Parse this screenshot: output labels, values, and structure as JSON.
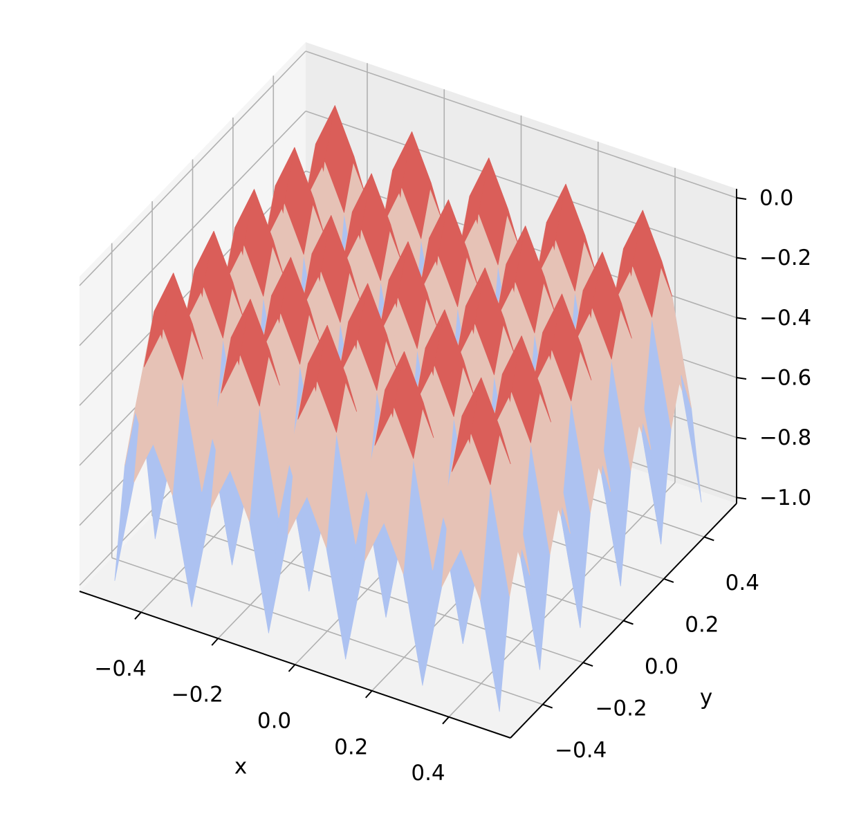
{
  "chart_data": {
    "type": "surface",
    "x_label": "x",
    "y_label": "y",
    "x": [
      -0.5,
      -0.45,
      -0.4,
      -0.35,
      -0.3,
      -0.25,
      -0.2,
      -0.15,
      -0.1,
      -0.05,
      0,
      0.05,
      0.1,
      0.15,
      0.2,
      0.25,
      0.3,
      0.35,
      0.4,
      0.45,
      0.5
    ],
    "y": [
      -0.5,
      -0.45,
      -0.4,
      -0.35,
      -0.3,
      -0.25,
      -0.2,
      -0.15,
      -0.1,
      -0.05,
      0,
      0.05,
      0.1,
      0.15,
      0.2,
      0.25,
      0.3,
      0.35,
      0.4,
      0.45,
      0.5
    ],
    "z": [
      [
        -1,
        -0.65,
        -0.5,
        -0.65,
        -1,
        -0.65,
        -0.5,
        -0.65,
        -1,
        -0.65,
        -0.5,
        -0.65,
        -1,
        -0.65,
        -0.5,
        -0.65,
        -1,
        -0.65,
        -0.5,
        -0.65,
        -1
      ],
      [
        -0.65,
        -0.3,
        -0.15,
        -0.3,
        -0.65,
        -0.3,
        -0.15,
        -0.3,
        -0.65,
        -0.3,
        -0.15,
        -0.3,
        -0.65,
        -0.3,
        -0.15,
        -0.3,
        -0.65,
        -0.3,
        -0.15,
        -0.3,
        -0.65
      ],
      [
        -0.5,
        -0.15,
        0,
        -0.15,
        -0.5,
        -0.15,
        0,
        -0.15,
        -0.5,
        -0.15,
        0,
        -0.15,
        -0.5,
        -0.15,
        0,
        -0.15,
        -0.5,
        -0.15,
        0,
        -0.15,
        -0.5
      ],
      [
        -0.65,
        -0.3,
        -0.15,
        -0.3,
        -0.65,
        -0.3,
        -0.15,
        -0.3,
        -0.65,
        -0.3,
        -0.15,
        -0.3,
        -0.65,
        -0.3,
        -0.15,
        -0.3,
        -0.65,
        -0.3,
        -0.15,
        -0.3,
        -0.65
      ],
      [
        -1,
        -0.65,
        -0.5,
        -0.65,
        -1,
        -0.65,
        -0.5,
        -0.65,
        -1,
        -0.65,
        -0.5,
        -0.65,
        -1,
        -0.65,
        -0.5,
        -0.65,
        -1,
        -0.65,
        -0.5,
        -0.65,
        -1
      ],
      [
        -0.65,
        -0.3,
        -0.15,
        -0.3,
        -0.65,
        -0.3,
        -0.15,
        -0.3,
        -0.65,
        -0.3,
        -0.15,
        -0.3,
        -0.65,
        -0.3,
        -0.15,
        -0.3,
        -0.65,
        -0.3,
        -0.15,
        -0.3,
        -0.65
      ],
      [
        -0.5,
        -0.15,
        0,
        -0.15,
        -0.5,
        -0.15,
        0,
        -0.15,
        -0.5,
        -0.15,
        0,
        -0.15,
        -0.5,
        -0.15,
        0,
        -0.15,
        -0.5,
        -0.15,
        0,
        -0.15,
        -0.5
      ],
      [
        -0.65,
        -0.3,
        -0.15,
        -0.3,
        -0.65,
        -0.3,
        -0.15,
        -0.3,
        -0.65,
        -0.3,
        -0.15,
        -0.3,
        -0.65,
        -0.3,
        -0.15,
        -0.3,
        -0.65,
        -0.3,
        -0.15,
        -0.3,
        -0.65
      ],
      [
        -1,
        -0.65,
        -0.5,
        -0.65,
        -1,
        -0.65,
        -0.5,
        -0.65,
        -1,
        -0.65,
        -0.5,
        -0.65,
        -1,
        -0.65,
        -0.5,
        -0.65,
        -1,
        -0.65,
        -0.5,
        -0.65,
        -1
      ],
      [
        -0.65,
        -0.3,
        -0.15,
        -0.3,
        -0.65,
        -0.3,
        -0.15,
        -0.3,
        -0.65,
        -0.3,
        -0.15,
        -0.3,
        -0.65,
        -0.3,
        -0.15,
        -0.3,
        -0.65,
        -0.3,
        -0.15,
        -0.3,
        -0.65
      ],
      [
        -0.5,
        -0.15,
        0,
        -0.15,
        -0.5,
        -0.15,
        0,
        -0.15,
        -0.5,
        -0.15,
        0,
        -0.15,
        -0.5,
        -0.15,
        0,
        -0.15,
        -0.5,
        -0.15,
        0,
        -0.15,
        -0.5
      ],
      [
        -0.65,
        -0.3,
        -0.15,
        -0.3,
        -0.65,
        -0.3,
        -0.15,
        -0.3,
        -0.65,
        -0.3,
        -0.15,
        -0.3,
        -0.65,
        -0.3,
        -0.15,
        -0.3,
        -0.65,
        -0.3,
        -0.15,
        -0.3,
        -0.65
      ],
      [
        -1,
        -0.65,
        -0.5,
        -0.65,
        -1,
        -0.65,
        -0.5,
        -0.65,
        -1,
        -0.65,
        -0.5,
        -0.65,
        -1,
        -0.65,
        -0.5,
        -0.65,
        -1,
        -0.65,
        -0.5,
        -0.65,
        -1
      ],
      [
        -0.65,
        -0.3,
        -0.15,
        -0.3,
        -0.65,
        -0.3,
        -0.15,
        -0.3,
        -0.65,
        -0.3,
        -0.15,
        -0.3,
        -0.65,
        -0.3,
        -0.15,
        -0.3,
        -0.65,
        -0.3,
        -0.15,
        -0.3,
        -0.65
      ],
      [
        -0.5,
        -0.15,
        0,
        -0.15,
        -0.5,
        -0.15,
        0,
        -0.15,
        -0.5,
        -0.15,
        0,
        -0.15,
        -0.5,
        -0.15,
        0,
        -0.15,
        -0.5,
        -0.15,
        0,
        -0.15,
        -0.5
      ],
      [
        -0.65,
        -0.3,
        -0.15,
        -0.3,
        -0.65,
        -0.3,
        -0.15,
        -0.3,
        -0.65,
        -0.3,
        -0.15,
        -0.3,
        -0.65,
        -0.3,
        -0.15,
        -0.3,
        -0.65,
        -0.3,
        -0.15,
        -0.3,
        -0.65
      ],
      [
        -1,
        -0.65,
        -0.5,
        -0.65,
        -1,
        -0.65,
        -0.5,
        -0.65,
        -1,
        -0.65,
        -0.5,
        -0.65,
        -1,
        -0.65,
        -0.5,
        -0.65,
        -1,
        -0.65,
        -0.5,
        -0.65,
        -1
      ],
      [
        -0.65,
        -0.3,
        -0.15,
        -0.3,
        -0.65,
        -0.3,
        -0.15,
        -0.3,
        -0.65,
        -0.3,
        -0.15,
        -0.3,
        -0.65,
        -0.3,
        -0.15,
        -0.3,
        -0.65,
        -0.3,
        -0.15,
        -0.3,
        -0.65
      ],
      [
        -0.5,
        -0.15,
        0,
        -0.15,
        -0.5,
        -0.15,
        0,
        -0.15,
        -0.5,
        -0.15,
        0,
        -0.15,
        -0.5,
        -0.15,
        0,
        -0.15,
        -0.5,
        -0.15,
        0,
        -0.15,
        -0.5
      ],
      [
        -0.65,
        -0.3,
        -0.15,
        -0.3,
        -0.65,
        -0.3,
        -0.15,
        -0.3,
        -0.65,
        -0.3,
        -0.15,
        -0.3,
        -0.65,
        -0.3,
        -0.15,
        -0.3,
        -0.65,
        -0.3,
        -0.15,
        -0.3,
        -0.65
      ],
      [
        -1,
        -0.65,
        -0.5,
        -0.65,
        -1,
        -0.65,
        -0.5,
        -0.65,
        -1,
        -0.65,
        -0.5,
        -0.65,
        -1,
        -0.65,
        -0.5,
        -0.65,
        -1,
        -0.65,
        -0.5,
        -0.65,
        -1
      ]
    ],
    "xlim": [
      -0.56,
      0.56
    ],
    "ylim": [
      -0.56,
      0.56
    ],
    "zlim": [
      -1.02,
      0.03
    ],
    "xticks": [
      {
        "value": -0.4,
        "label": "−0.4"
      },
      {
        "value": -0.2,
        "label": "−0.2"
      },
      {
        "value": 0,
        "label": "0.0"
      },
      0.2,
      0.4
    ],
    "yticks": [
      {
        "value": -0.4,
        "label": "−0.4"
      },
      {
        "value": -0.2,
        "label": "−0.2"
      },
      {
        "value": 0,
        "label": "0.0"
      },
      0.2,
      0.4
    ],
    "zticks": [
      {
        "value": -1,
        "label": "−1.0"
      },
      {
        "value": -0.8,
        "label": "−0.8"
      },
      {
        "value": -0.6,
        "label": "−0.6"
      },
      {
        "value": -0.4,
        "label": "−0.4"
      },
      {
        "value": -0.2,
        "label": "−0.2"
      },
      {
        "value": 0,
        "label": "0.0"
      }
    ],
    "grid": true,
    "colormap": [
      "#3b4cc0",
      "#8db0fe",
      "#dddddd",
      "#f49a7b",
      "#b40426"
    ]
  }
}
